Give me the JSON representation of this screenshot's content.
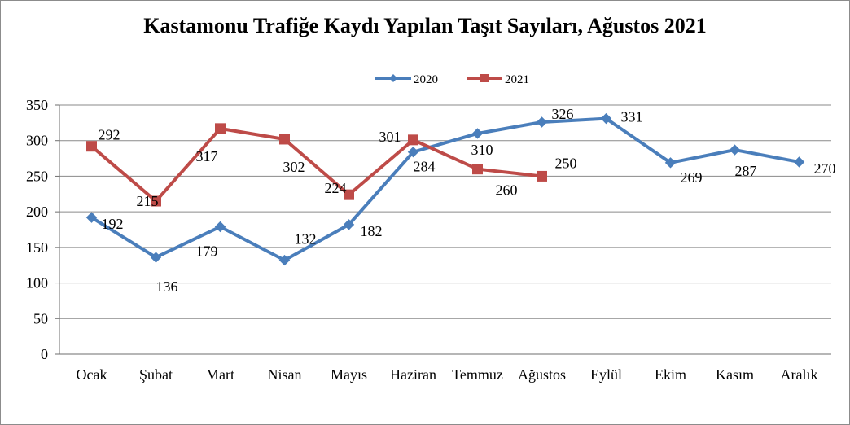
{
  "chart_data": {
    "type": "line",
    "title": "Kastamonu Trafiğe Kaydı Yapılan Taşıt Sayıları, Ağustos 2021",
    "xlabel": "",
    "ylabel": "",
    "categories": [
      "Ocak",
      "Şubat",
      "Mart",
      "Nisan",
      "Mayıs",
      "Haziran",
      "Temmuz",
      "Ağustos",
      "Eylül",
      "Ekim",
      "Kasım",
      "Aralık"
    ],
    "ylim": [
      0,
      350
    ],
    "yticks": [
      "0",
      "50",
      "100",
      "150",
      "200",
      "250",
      "300",
      "350"
    ],
    "grid": true,
    "legend_position": "top",
    "series": [
      {
        "name": "2020",
        "color": "#4a7ebb",
        "marker": "diamond",
        "values": [
          192,
          136,
          179,
          132,
          182,
          284,
          310,
          326,
          331,
          269,
          287,
          270
        ]
      },
      {
        "name": "2021",
        "color": "#be4b48",
        "marker": "square",
        "values": [
          292,
          215,
          317,
          302,
          224,
          301,
          260,
          250,
          null,
          null,
          null,
          null
        ]
      }
    ]
  }
}
